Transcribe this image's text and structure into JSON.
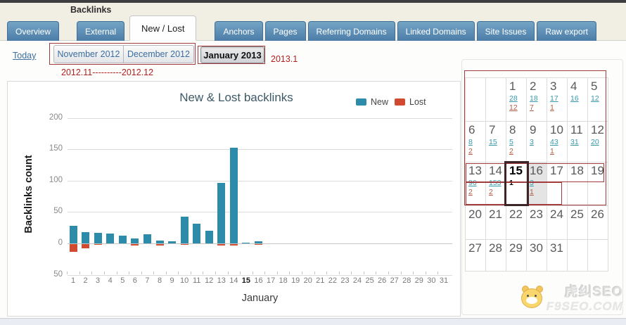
{
  "page_title": "Backlinks",
  "tabs": [
    {
      "label": "Overview",
      "active": false
    },
    {
      "label": "External",
      "active": false
    },
    {
      "label": "New / Lost",
      "active": true
    },
    {
      "label": "Anchors",
      "active": false
    },
    {
      "label": "Pages",
      "active": false
    },
    {
      "label": "Referring Domains",
      "active": false
    },
    {
      "label": "Linked Domains",
      "active": false
    },
    {
      "label": "Site Issues",
      "active": false
    },
    {
      "label": "Raw export",
      "active": false
    }
  ],
  "toolbar": {
    "today_label": "Today",
    "months": [
      {
        "label": "November 2012",
        "active": false
      },
      {
        "label": "December 2012",
        "active": false
      },
      {
        "label": "January 2013",
        "active": true
      }
    ]
  },
  "annotations": {
    "month_range_note": "2012.11----------2012.12",
    "current_month_note": "2013.1"
  },
  "chart_data": {
    "type": "bar",
    "title": "New & Lost backlinks",
    "ylabel": "Backlinks count",
    "xlabel": "January",
    "ylim": [
      -50,
      200
    ],
    "grid": true,
    "legend_position": "top-right",
    "yticks": [
      {
        "value": 200,
        "label": "200"
      },
      {
        "value": 150,
        "label": "150"
      },
      {
        "value": 100,
        "label": "100"
      },
      {
        "value": 50,
        "label": "50"
      },
      {
        "value": 0,
        "label": "0"
      },
      {
        "value": -50,
        "label": "50"
      }
    ],
    "x": [
      1,
      2,
      3,
      4,
      5,
      6,
      7,
      8,
      9,
      10,
      11,
      12,
      13,
      14,
      15,
      16,
      17,
      18,
      19,
      20,
      21,
      22,
      23,
      24,
      25,
      26,
      27,
      28,
      29,
      30,
      31
    ],
    "bold_x": 15,
    "series": [
      {
        "name": "New",
        "color": "#2e8cab",
        "direction": "up",
        "values": [
          28,
          18,
          17,
          16,
          12,
          8,
          15,
          5,
          3,
          43,
          31,
          20,
          96,
          153,
          1,
          3,
          0,
          0,
          0,
          0,
          0,
          0,
          0,
          0,
          0,
          0,
          0,
          0,
          0,
          0,
          0
        ]
      },
      {
        "name": "Lost",
        "color": "#cf4a2e",
        "direction": "down",
        "values": [
          12,
          7,
          1,
          0,
          0,
          2,
          0,
          2,
          0,
          1,
          0,
          0,
          2,
          2,
          0,
          1,
          0,
          0,
          0,
          0,
          0,
          0,
          0,
          0,
          0,
          0,
          0,
          0,
          0,
          0,
          0
        ]
      }
    ]
  },
  "calendar": {
    "weeks": [
      [
        {
          "day": ""
        },
        {
          "day": ""
        },
        {
          "day": "1",
          "new": "28",
          "lost": "12"
        },
        {
          "day": "2",
          "new": "18",
          "lost": "7"
        },
        {
          "day": "3",
          "new": "17",
          "lost": "1"
        },
        {
          "day": "4",
          "new": "16"
        },
        {
          "day": "5",
          "new": "12"
        }
      ],
      [
        {
          "day": "6",
          "new": "8",
          "lost": "2"
        },
        {
          "day": "7",
          "new": "15"
        },
        {
          "day": "8",
          "new": "5",
          "lost": "2"
        },
        {
          "day": "9",
          "new": "3"
        },
        {
          "day": "10",
          "new": "43",
          "lost": "1"
        },
        {
          "day": "11",
          "new": "31"
        },
        {
          "day": "12",
          "new": "20"
        }
      ],
      [
        {
          "day": "13",
          "new": "96",
          "lost": "2"
        },
        {
          "day": "14",
          "new": "153",
          "lost": "2"
        },
        {
          "day": "15",
          "new": "1",
          "today": true
        },
        {
          "day": "16",
          "new": "3",
          "lost": "1",
          "selected": true
        },
        {
          "day": "17"
        },
        {
          "day": "18"
        },
        {
          "day": "19"
        }
      ],
      [
        {
          "day": "20"
        },
        {
          "day": "21"
        },
        {
          "day": "22"
        },
        {
          "day": "23"
        },
        {
          "day": "24"
        },
        {
          "day": "25"
        },
        {
          "day": "26"
        }
      ],
      [
        {
          "day": "27"
        },
        {
          "day": "28"
        },
        {
          "day": "29"
        },
        {
          "day": "30"
        },
        {
          "day": "31"
        },
        {
          "day": ""
        },
        {
          "day": ""
        }
      ]
    ]
  },
  "watermark": {
    "line1": "虎纠SEO",
    "line2": "F9SEO.COM"
  }
}
